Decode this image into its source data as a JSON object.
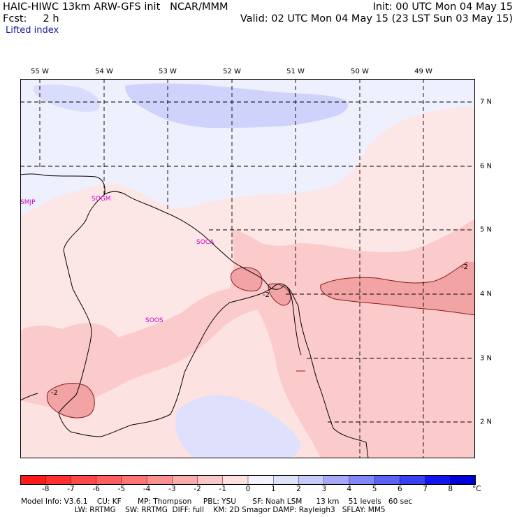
{
  "header": {
    "model_line": "HAIC-HIWC 13km ARW-GFS init   NCAR/MMM",
    "forecast_line": "Fcst:     2 h",
    "init_line": "Init: 00 UTC Mon 04 May 15",
    "valid_line": "Valid: 02 UTC Mon 04 May 15 (23 LST Sun 03 May 15)",
    "field_name": "Lifted index"
  },
  "map": {
    "longitude_labels": [
      "55 W",
      "54 W",
      "53 W",
      "52 W",
      "51 W",
      "50 W",
      "49 W"
    ],
    "latitude_labels": [
      "7 N",
      "6 N",
      "5 N",
      "4 N",
      "3 N",
      "2 N"
    ],
    "station_labels": [
      "SMJP",
      "SOGM",
      "SOCA",
      "SOOS"
    ],
    "contour_labels": [
      "-2",
      "-2",
      "-2"
    ],
    "colors": {
      "strong_negative": "#f2a3a3",
      "moderate_negative": "#fbcaca",
      "weak_negative": "#fde6e6",
      "neutral": "#eef0fd",
      "weak_positive": "#cfd3fb",
      "station_text": "#cc00cc",
      "contour_line": "#8b1a1a",
      "border_line": "#000000"
    }
  },
  "colorbar": {
    "tick_labels": [
      "-8",
      "-7",
      "-6",
      "-5",
      "-4",
      "-3",
      "-2",
      "-1",
      "0",
      "1",
      "2",
      "3",
      "4",
      "5",
      "6",
      "7",
      "8"
    ],
    "unit": "°C",
    "colors": [
      "#ff1a1a",
      "#ff3030",
      "#ff4848",
      "#ff5f5f",
      "#ff7575",
      "#fa9090",
      "#f7abab",
      "#fbc6c6",
      "#fde0e0",
      "#f3f3fe",
      "#e0e2fc",
      "#c6c9fb",
      "#a5a9f8",
      "#8187f6",
      "#5c63f3",
      "#3940f1",
      "#1216ee",
      "#0000d8"
    ]
  },
  "footer": {
    "line1": "Model Info: V3.6.1    CU: KF       MP: Thompson     PBL: YSU       SF: Noah LSM      13 km    51 levels   60 sec",
    "line2": "                       LW: RRTMG    SW: RRTMG  DIFF: full    KM: 2D Smagor DAMP: Rayleigh3   SFLAY: MM5"
  }
}
